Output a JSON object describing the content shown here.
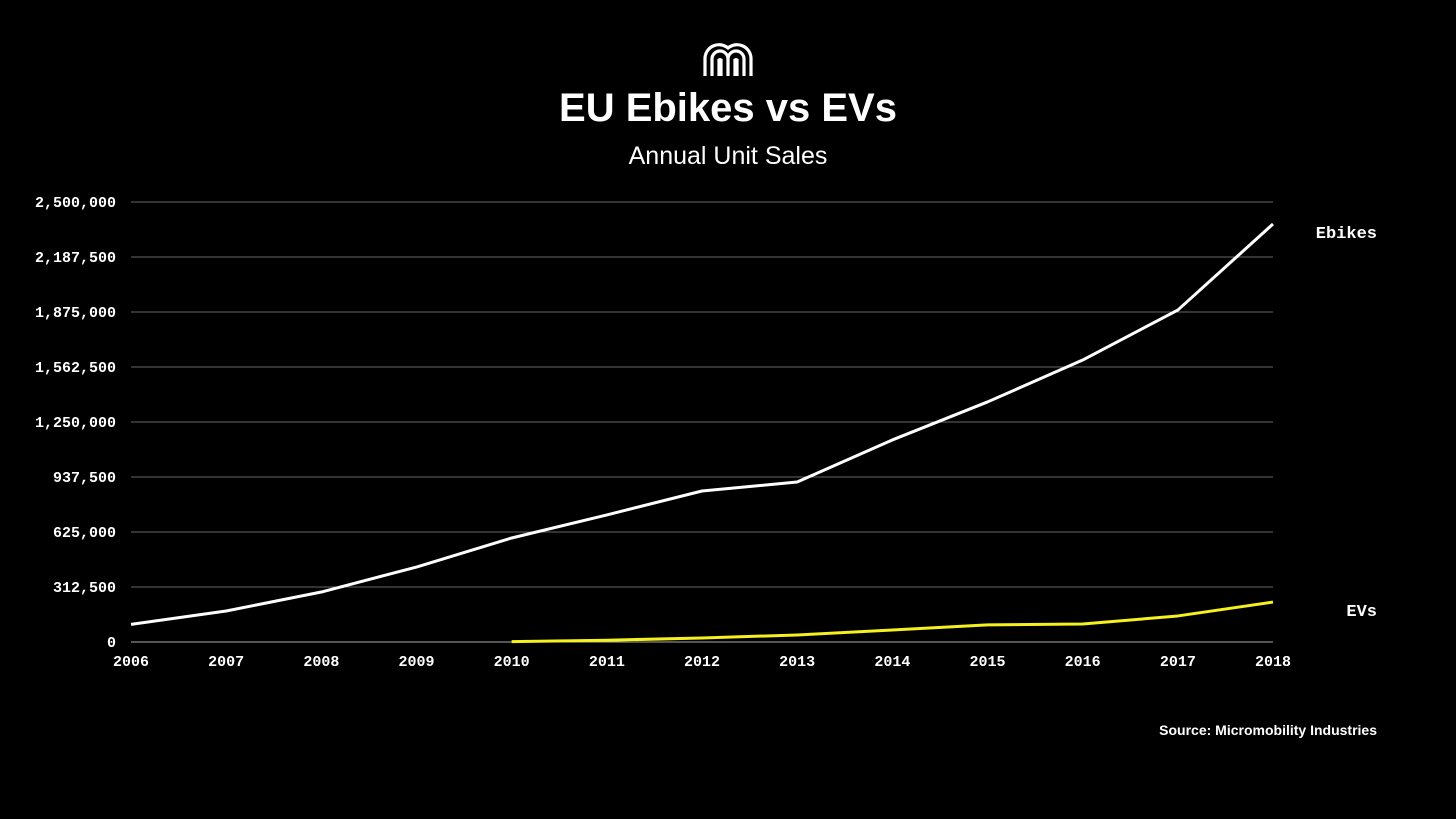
{
  "header": {
    "title": "EU Ebikes vs EVs",
    "subtitle": "Annual Unit Sales",
    "logo_text": "Micromobility"
  },
  "source": "Source: Micromobility Industries",
  "chart_data": {
    "type": "line",
    "title": "EU Ebikes vs EVs",
    "subtitle": "Annual Unit Sales",
    "xlabel": "",
    "ylabel": "",
    "x": [
      2006,
      2007,
      2008,
      2009,
      2010,
      2011,
      2012,
      2013,
      2014,
      2015,
      2016,
      2017,
      2018
    ],
    "ylim": [
      0,
      2500000
    ],
    "y_ticks": [
      "0",
      "312,500",
      "625,000",
      "937,500",
      "1,250,000",
      "1,562,500",
      "1,875,000",
      "2,187,500",
      "2,500,000"
    ],
    "x_ticks": [
      "2006",
      "2007",
      "2008",
      "2009",
      "2010",
      "2011",
      "2012",
      "2013",
      "2014",
      "2015",
      "2016",
      "2017",
      "2018"
    ],
    "grid": true,
    "legend": "right (inline labels at line ends)",
    "series": [
      {
        "name": "Ebikes",
        "color": "#ffffff",
        "values": [
          100000,
          176000,
          284000,
          426000,
          591000,
          722000,
          858000,
          909000,
          1148000,
          1364000,
          1602000,
          1886000,
          2375000
        ]
      },
      {
        "name": "EVs",
        "color": "#f5f01e",
        "values": [
          null,
          null,
          null,
          null,
          2000,
          10000,
          23000,
          40000,
          68000,
          97000,
          102000,
          148000,
          227000
        ]
      }
    ]
  }
}
